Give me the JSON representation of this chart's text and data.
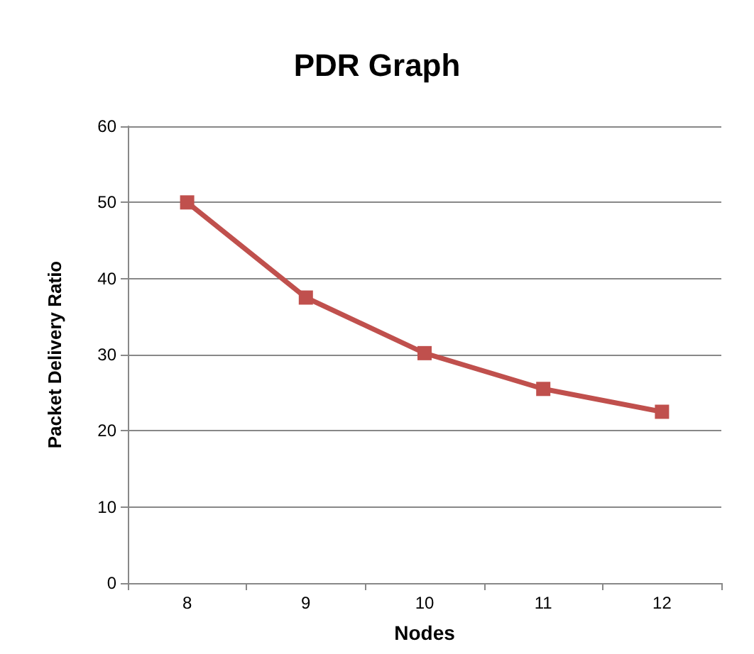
{
  "chart_data": {
    "type": "line",
    "title": "PDR Graph",
    "xlabel": "Nodes",
    "ylabel": "Packet Delivery Ratio",
    "categories": [
      "8",
      "9",
      "10",
      "11",
      "12"
    ],
    "series": [
      {
        "color": "#c0504d",
        "values": [
          50,
          37.5,
          30.2,
          25.5,
          22.5
        ]
      }
    ],
    "ylim": [
      0,
      60
    ],
    "yticks": [
      0,
      10,
      20,
      30,
      40,
      50,
      60
    ],
    "grid": "y",
    "marker": "square",
    "line_style": "solid"
  }
}
